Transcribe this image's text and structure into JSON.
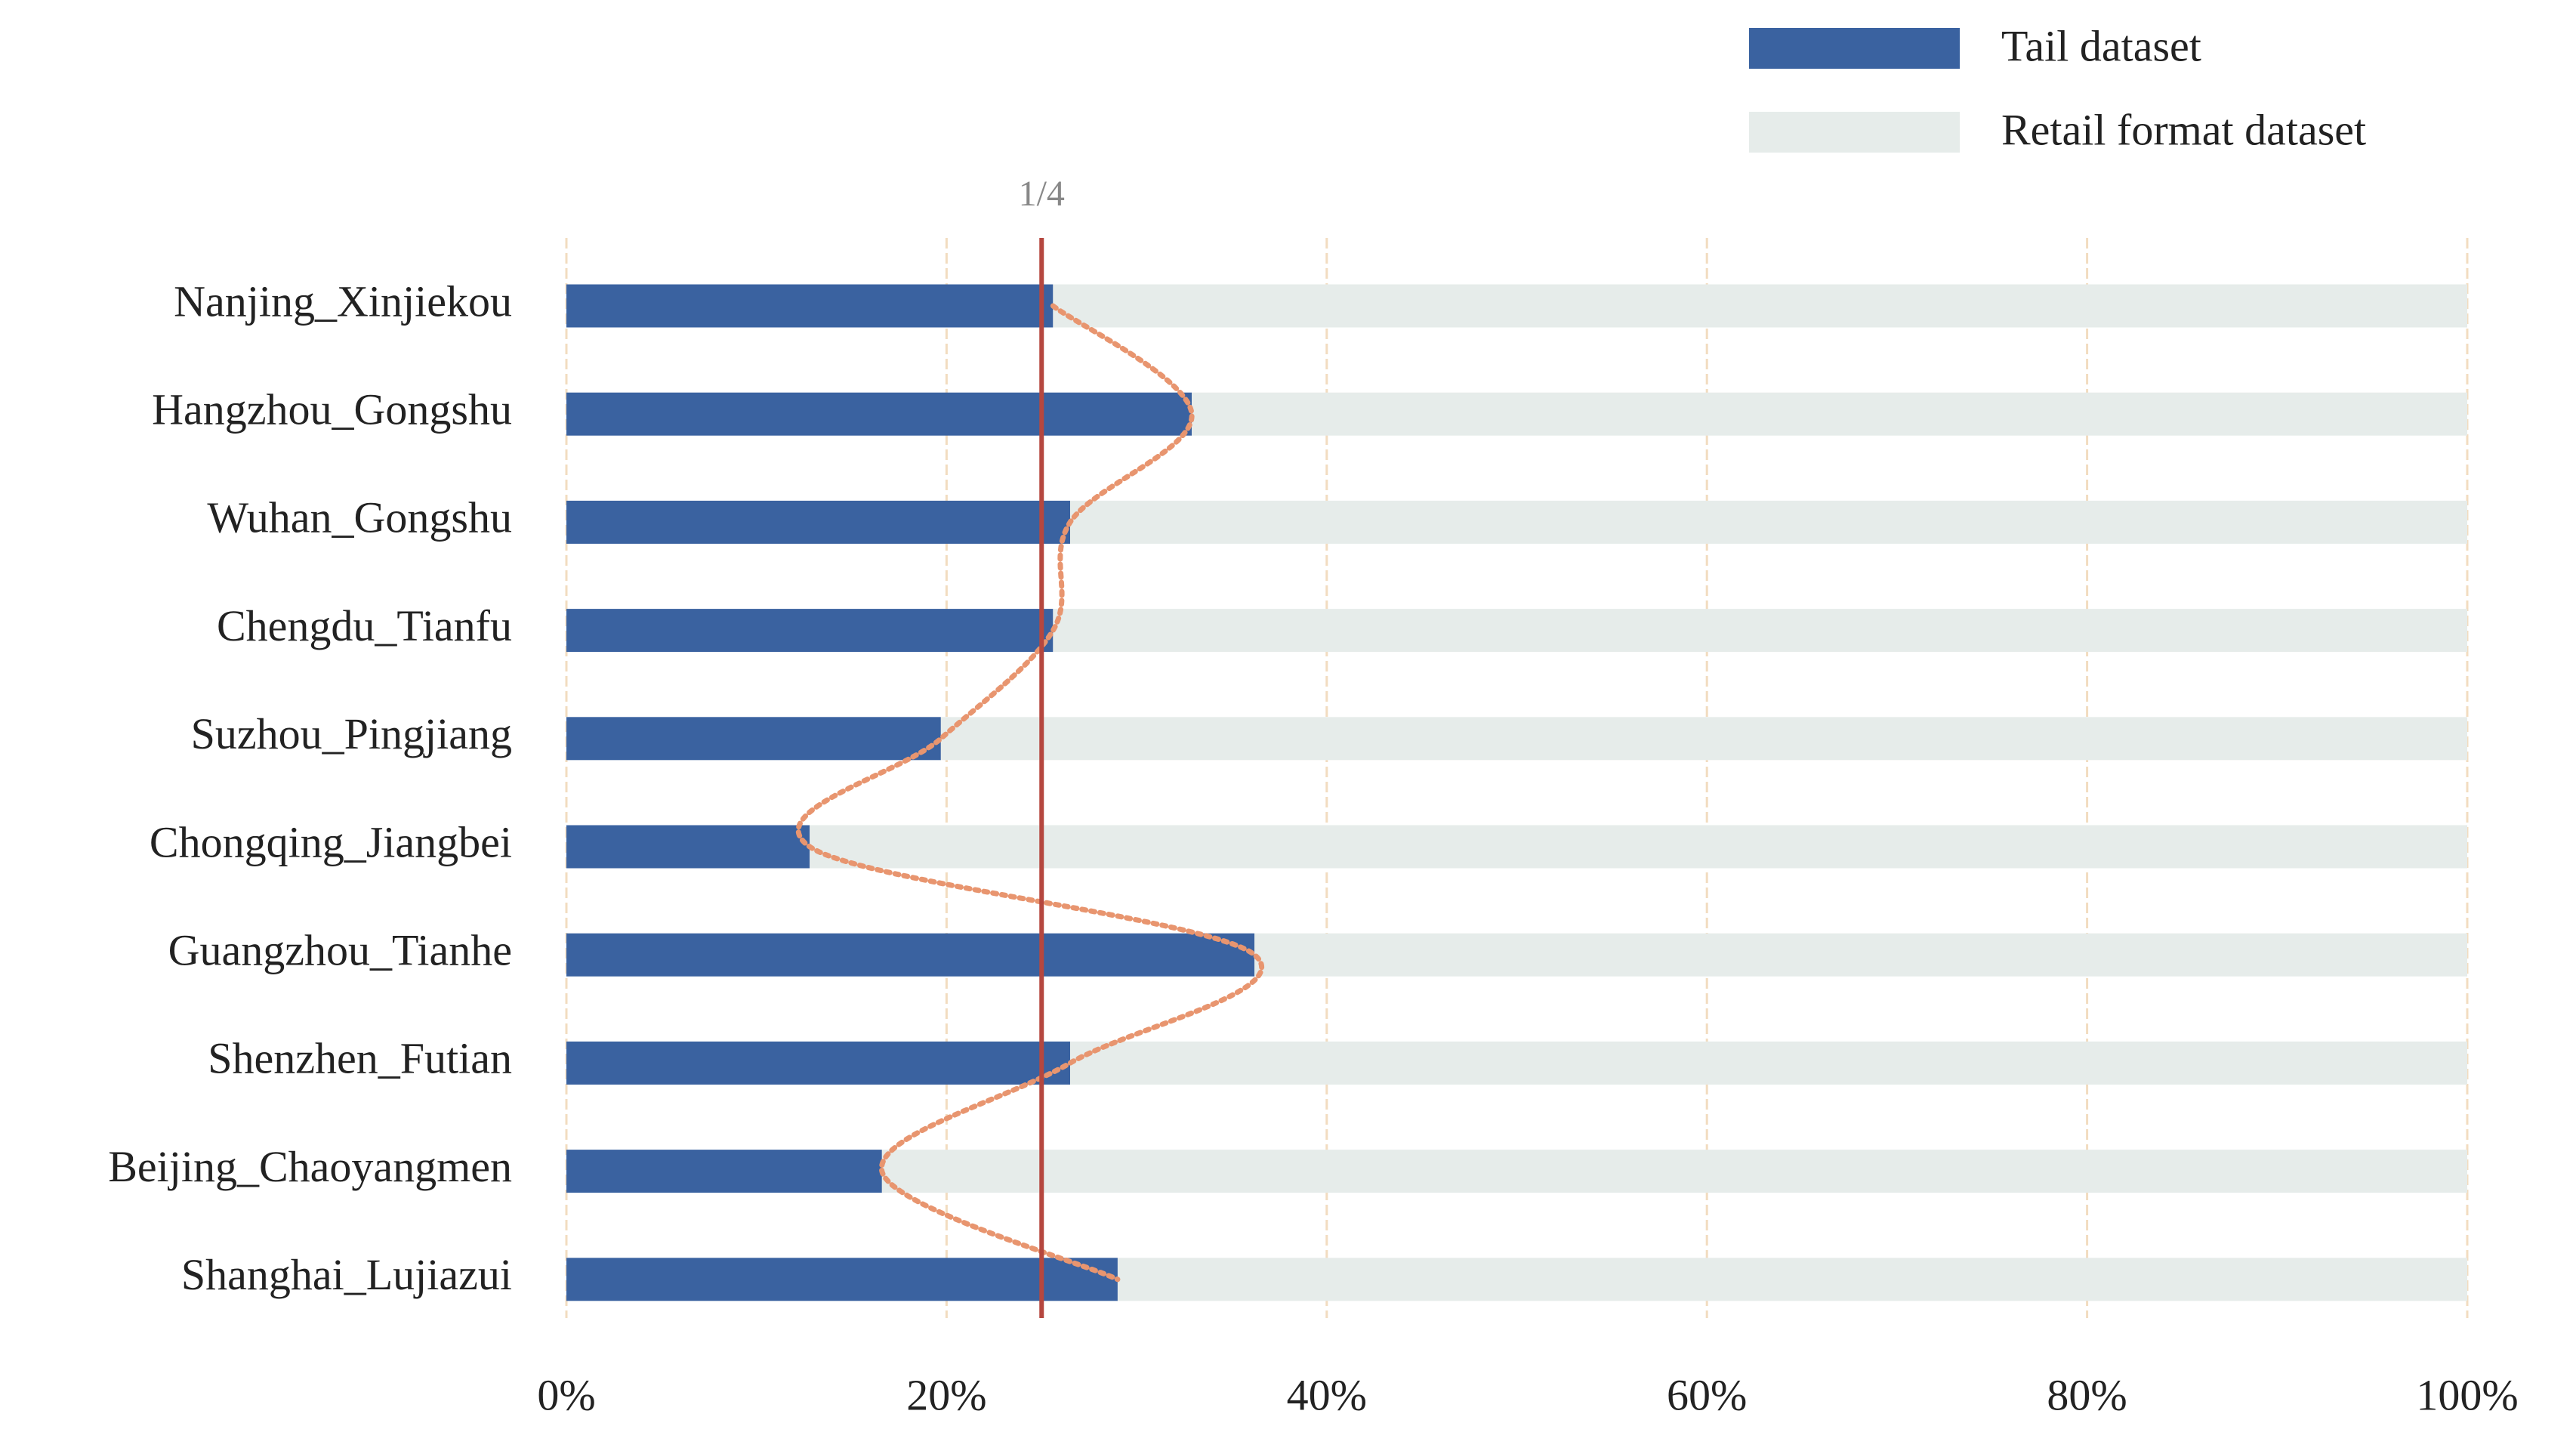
{
  "chart_data": {
    "type": "stacked_barh",
    "categories": [
      "Nanjing_Xinjiekou",
      "Hangzhou_Gongshu",
      "Wuhan_Gongshu",
      "Chengdu_Tianfu",
      "Suzhou_Pingjiang",
      "Chongqing_Jiangbei",
      "Guangzhou_Tianhe",
      "Shenzhen_Futian",
      "Beijing_Chaoyangmen",
      "Shanghai_Lujiazui"
    ],
    "series": [
      {
        "name": "Tail dataset",
        "color": "#3a62a0",
        "values": [
          25.6,
          32.9,
          26.5,
          25.6,
          19.7,
          12.8,
          36.2,
          26.5,
          16.6,
          29.0
        ]
      },
      {
        "name": "Retail format dataset",
        "color": "#e6ecea",
        "values": [
          74.4,
          67.1,
          73.5,
          74.4,
          80.3,
          87.2,
          63.8,
          73.5,
          83.4,
          71.0
        ]
      }
    ],
    "xlim": [
      0,
      100
    ],
    "xticks": [
      {
        "value": 0,
        "label": "0%"
      },
      {
        "value": 20,
        "label": "20%"
      },
      {
        "value": 40,
        "label": "40%"
      },
      {
        "value": 60,
        "label": "60%"
      },
      {
        "value": 80,
        "label": "80%"
      },
      {
        "value": 100,
        "label": "100%"
      }
    ],
    "grid": true,
    "reference": {
      "value": 25,
      "label": "1/4",
      "color": "#b5473f"
    },
    "trend_color": "#e8956f",
    "legend": "upper right"
  }
}
